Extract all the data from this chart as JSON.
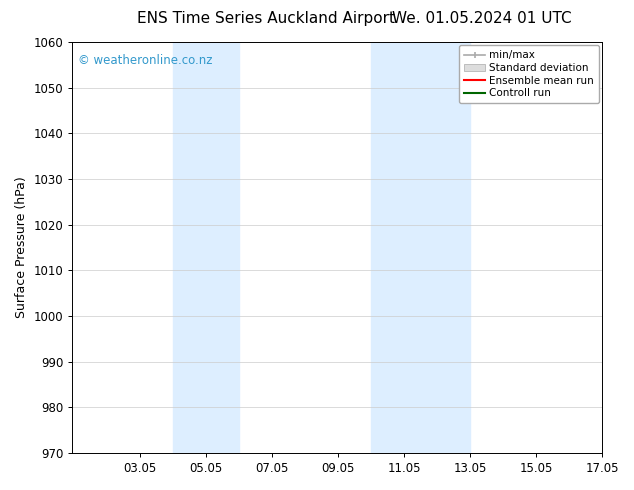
{
  "title_left": "ENS Time Series Auckland Airport",
  "title_right": "We. 01.05.2024 01 UTC",
  "ylabel": "Surface Pressure (hPa)",
  "xlim": [
    1.0,
    17.05
  ],
  "ylim": [
    970,
    1060
  ],
  "yticks": [
    970,
    980,
    990,
    1000,
    1010,
    1020,
    1030,
    1040,
    1050,
    1060
  ],
  "xticks": [
    3.05,
    5.05,
    7.05,
    9.05,
    11.05,
    13.05,
    15.05,
    17.05
  ],
  "xtick_labels": [
    "03.05",
    "05.05",
    "07.05",
    "09.05",
    "11.05",
    "13.05",
    "15.05",
    "17.05"
  ],
  "shaded_bands": [
    {
      "xmin": 4.05,
      "xmax": 6.05
    },
    {
      "xmin": 10.05,
      "xmax": 13.05
    }
  ],
  "shade_color": "#ddeeff",
  "watermark": "© weatheronline.co.nz",
  "watermark_color": "#3399cc",
  "bg_color": "#ffffff",
  "plot_bg_color": "#ffffff",
  "grid_color": "#cccccc",
  "legend_items": [
    {
      "label": "min/max",
      "color": "#aaaaaa",
      "type": "minmax"
    },
    {
      "label": "Standard deviation",
      "color": "#cccccc",
      "type": "bar"
    },
    {
      "label": "Ensemble mean run",
      "color": "#ff0000",
      "type": "line"
    },
    {
      "label": "Controll run",
      "color": "#008000",
      "type": "line"
    }
  ],
  "title_fontsize": 11,
  "tick_fontsize": 8.5,
  "ylabel_fontsize": 9,
  "watermark_fontsize": 8.5,
  "legend_fontsize": 7.5
}
